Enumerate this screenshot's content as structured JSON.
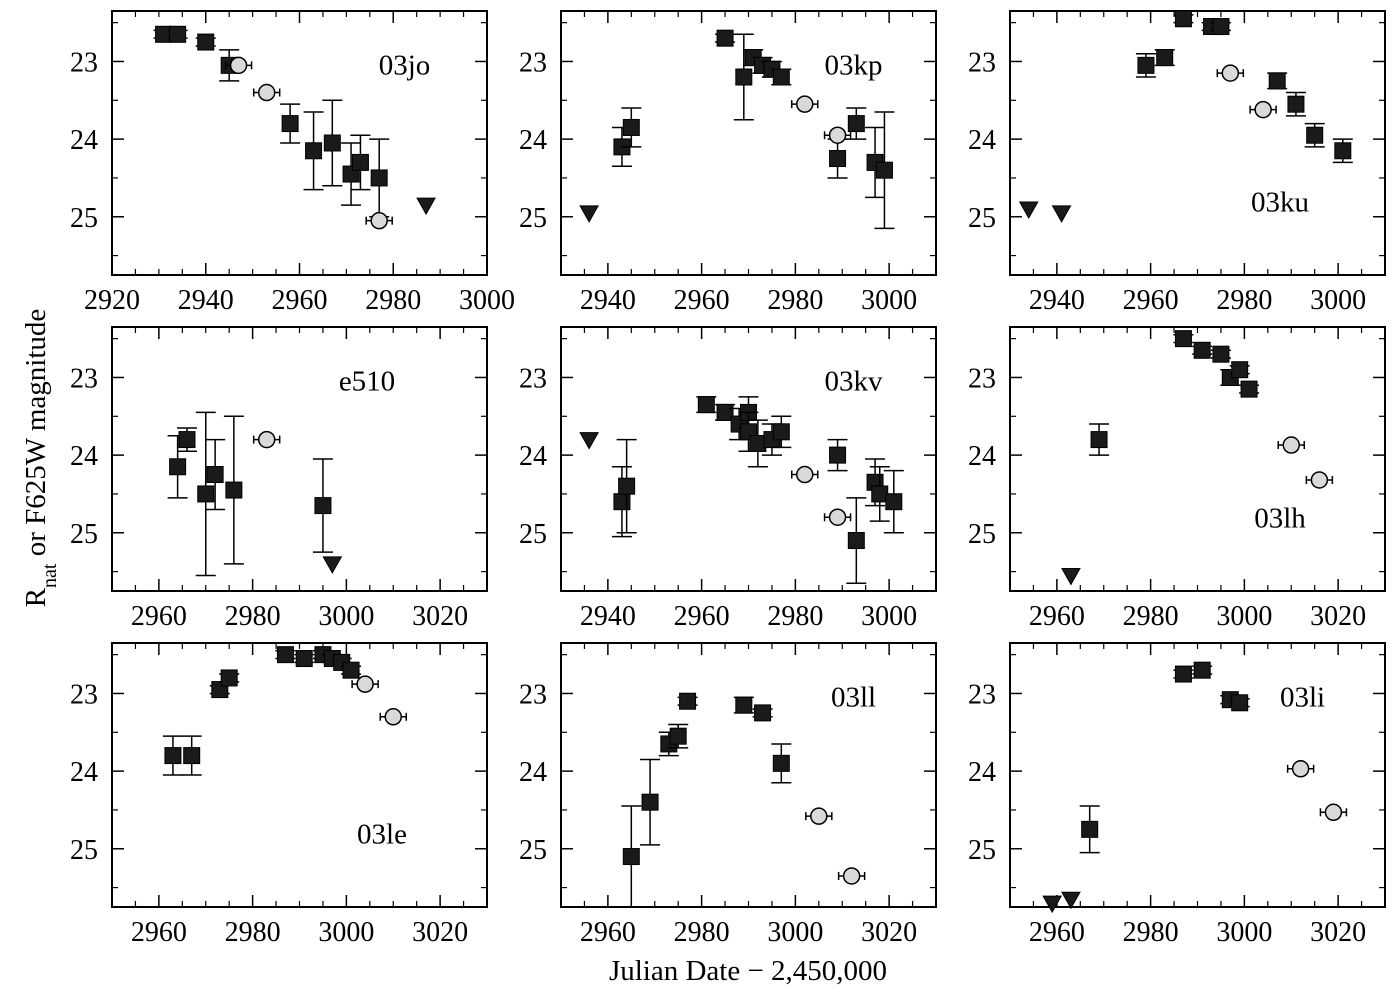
{
  "figure": {
    "xlabel": "Julian Date − 2,450,000",
    "ylabel_main": "R",
    "ylabel_sub": "nat",
    "ylabel_rest": " or F625W magnitude"
  },
  "chart_data": [
    {
      "type": "scatter",
      "label": "03jo",
      "xlim": [
        2920,
        3000
      ],
      "ylim": [
        25.75,
        22.35
      ],
      "xticks": [
        2920,
        2940,
        2960,
        2980,
        3000
      ],
      "yticks": [
        23,
        24,
        25
      ],
      "squares": [
        [
          2931,
          22.65,
          0.05
        ],
        [
          2934,
          22.65,
          0.05
        ],
        [
          2940,
          22.75,
          0.05
        ],
        [
          2945,
          23.05,
          0.2
        ],
        [
          2958,
          23.8,
          0.25
        ],
        [
          2963,
          24.15,
          0.5
        ],
        [
          2967,
          24.05,
          0.55
        ],
        [
          2971,
          24.45,
          0.4
        ],
        [
          2973,
          24.3,
          0.35
        ],
        [
          2977,
          24.5,
          0.5
        ]
      ],
      "circles": [
        [
          2947,
          23.05,
          0.05
        ],
        [
          2953,
          23.4,
          0.05
        ],
        [
          2977,
          25.05,
          0.1
        ]
      ],
      "triangles": [
        [
          2987,
          24.85
        ]
      ]
    },
    {
      "type": "scatter",
      "label": "03kp",
      "xlim": [
        2930,
        3010
      ],
      "ylim": [
        25.75,
        22.35
      ],
      "xticks": [
        2940,
        2960,
        2980,
        3000
      ],
      "yticks": [
        23,
        24,
        25
      ],
      "squares": [
        [
          2943,
          24.1,
          0.25
        ],
        [
          2945,
          23.85,
          0.25
        ],
        [
          2965,
          22.7,
          0.05
        ],
        [
          2969,
          23.2,
          0.55
        ],
        [
          2971,
          22.95,
          0.1
        ],
        [
          2973,
          23.05,
          0.1
        ],
        [
          2975,
          23.1,
          0.1
        ],
        [
          2977,
          23.2,
          0.1
        ],
        [
          2989,
          24.25,
          0.25
        ],
        [
          2993,
          23.8,
          0.2
        ],
        [
          2997,
          24.3,
          0.45
        ],
        [
          2999,
          24.4,
          0.75
        ]
      ],
      "circles": [
        [
          2982,
          23.55,
          0.05
        ],
        [
          2989,
          23.95,
          0.05
        ]
      ],
      "triangles": [
        [
          2936,
          24.95
        ]
      ]
    },
    {
      "type": "scatter",
      "label": "03ku",
      "xlim": [
        2930,
        3010
      ],
      "ylim": [
        25.75,
        22.35
      ],
      "xticks": [
        2940,
        2960,
        2980,
        3000
      ],
      "yticks": [
        23,
        24,
        25
      ],
      "squares": [
        [
          2959,
          23.05,
          0.15
        ],
        [
          2963,
          22.95,
          0.1
        ],
        [
          2967,
          22.45,
          0.05
        ],
        [
          2973,
          22.55,
          0.05
        ],
        [
          2975,
          22.55,
          0.05
        ],
        [
          2987,
          23.25,
          0.1
        ],
        [
          2991,
          23.55,
          0.15
        ],
        [
          2995,
          23.95,
          0.15
        ],
        [
          3001,
          24.15,
          0.15
        ]
      ],
      "circles": [
        [
          2977,
          23.15,
          0.05
        ],
        [
          2984,
          23.62,
          0.05
        ]
      ],
      "triangles": [
        [
          2934,
          24.9
        ],
        [
          2941,
          24.95
        ]
      ]
    },
    {
      "type": "scatter",
      "label": "e510",
      "xlim": [
        2950,
        3030
      ],
      "ylim": [
        25.75,
        22.35
      ],
      "xticks": [
        2960,
        2980,
        3000,
        3020
      ],
      "yticks": [
        23,
        24,
        25
      ],
      "squares": [
        [
          2964,
          24.15,
          0.4
        ],
        [
          2966,
          23.8,
          0.15
        ],
        [
          2970,
          24.5,
          1.05
        ],
        [
          2972,
          24.25,
          0.45
        ],
        [
          2976,
          24.45,
          0.95
        ],
        [
          2995,
          24.65,
          0.6
        ]
      ],
      "circles": [
        [
          2983,
          23.8,
          0.05
        ]
      ],
      "triangles": [
        [
          2997,
          25.4
        ]
      ]
    },
    {
      "type": "scatter",
      "label": "03kv",
      "xlim": [
        2930,
        3010
      ],
      "ylim": [
        25.75,
        22.35
      ],
      "xticks": [
        2940,
        2960,
        2980,
        3000
      ],
      "yticks": [
        23,
        24,
        25
      ],
      "squares": [
        [
          2943,
          24.6,
          0.45
        ],
        [
          2944,
          24.4,
          0.6
        ],
        [
          2961,
          23.35,
          0.1
        ],
        [
          2965,
          23.45,
          0.1
        ],
        [
          2968,
          23.6,
          0.2
        ],
        [
          2970,
          23.45,
          0.2
        ],
        [
          2970,
          23.7,
          0.25
        ],
        [
          2972,
          23.85,
          0.3
        ],
        [
          2975,
          23.8,
          0.2
        ],
        [
          2977,
          23.7,
          0.2
        ],
        [
          2989,
          24.0,
          0.2
        ],
        [
          2993,
          25.1,
          0.55
        ],
        [
          2997,
          24.35,
          0.3
        ],
        [
          2998,
          24.5,
          0.35
        ],
        [
          3001,
          24.6,
          0.4
        ]
      ],
      "circles": [
        [
          2982,
          24.25,
          0.05
        ],
        [
          2989,
          24.8,
          0.05
        ]
      ],
      "triangles": [
        [
          2936,
          23.8
        ]
      ]
    },
    {
      "type": "scatter",
      "label": "03lh",
      "xlim": [
        2950,
        3030
      ],
      "ylim": [
        25.75,
        22.35
      ],
      "xticks": [
        2960,
        2980,
        3000,
        3020
      ],
      "yticks": [
        23,
        24,
        25
      ],
      "squares": [
        [
          2969,
          23.8,
          0.2
        ],
        [
          2987,
          22.5,
          0.05
        ],
        [
          2991,
          22.65,
          0.05
        ],
        [
          2995,
          22.7,
          0.05
        ],
        [
          2997,
          23.0,
          0.1
        ],
        [
          2999,
          22.9,
          0.05
        ],
        [
          3001,
          23.15,
          0.05
        ]
      ],
      "circles": [
        [
          3010,
          23.87,
          0.05
        ],
        [
          3016,
          24.32,
          0.05
        ]
      ],
      "triangles": [
        [
          2963,
          25.55
        ]
      ]
    },
    {
      "type": "scatter",
      "label": "03le",
      "xlim": [
        2950,
        3030
      ],
      "ylim": [
        25.75,
        22.35
      ],
      "xticks": [
        2960,
        2980,
        3000,
        3020
      ],
      "yticks": [
        23,
        24,
        25
      ],
      "squares": [
        [
          2963,
          23.8,
          0.25
        ],
        [
          2967,
          23.8,
          0.25
        ],
        [
          2973,
          22.95,
          0.05
        ],
        [
          2975,
          22.8,
          0.05
        ],
        [
          2987,
          22.5,
          0.05
        ],
        [
          2991,
          22.55,
          0.05
        ],
        [
          2995,
          22.5,
          0.05
        ],
        [
          2997,
          22.55,
          0.05
        ],
        [
          2999,
          22.6,
          0.05
        ],
        [
          3001,
          22.7,
          0.05
        ]
      ],
      "circles": [
        [
          3004,
          22.88,
          0.05
        ],
        [
          3010,
          23.3,
          0.05
        ]
      ],
      "triangles": []
    },
    {
      "type": "scatter",
      "label": "03ll",
      "xlim": [
        2950,
        3030
      ],
      "ylim": [
        25.75,
        22.35
      ],
      "xticks": [
        2960,
        2980,
        3000,
        3020
      ],
      "yticks": [
        23,
        24,
        25
      ],
      "squares": [
        [
          2965,
          25.1,
          0.65
        ],
        [
          2969,
          24.4,
          0.55
        ],
        [
          2973,
          23.65,
          0.15
        ],
        [
          2975,
          23.55,
          0.15
        ],
        [
          2977,
          23.1,
          0.05
        ],
        [
          2989,
          23.15,
          0.1
        ],
        [
          2993,
          23.25,
          0.05
        ],
        [
          2997,
          23.9,
          0.25
        ]
      ],
      "circles": [
        [
          3005,
          24.58,
          0.05
        ],
        [
          3012,
          25.35,
          0.1
        ]
      ],
      "triangles": []
    },
    {
      "type": "scatter",
      "label": "03li",
      "xlim": [
        2950,
        3030
      ],
      "ylim": [
        25.75,
        22.35
      ],
      "xticks": [
        2960,
        2980,
        3000,
        3020
      ],
      "yticks": [
        23,
        24,
        25
      ],
      "squares": [
        [
          2967,
          24.75,
          0.3
        ],
        [
          2987,
          22.75,
          0.05
        ],
        [
          2991,
          22.7,
          0.05
        ],
        [
          2997,
          23.08,
          0.05
        ],
        [
          2999,
          23.12,
          0.05
        ]
      ],
      "circles": [
        [
          3012,
          23.97,
          0.05
        ],
        [
          3019,
          24.53,
          0.05
        ]
      ],
      "triangles": [
        [
          2959,
          25.7
        ],
        [
          2963,
          25.65
        ]
      ]
    }
  ]
}
